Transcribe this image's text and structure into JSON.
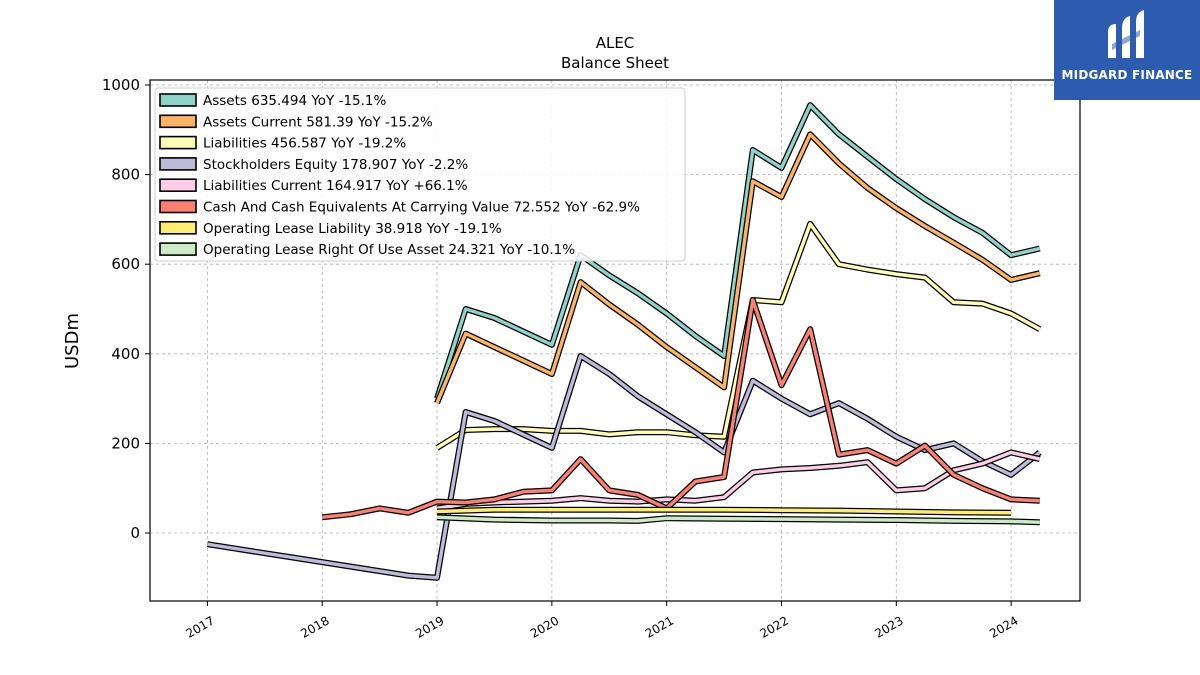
{
  "chart_data": {
    "type": "line",
    "title": "ALEC",
    "subtitle": "Balance  Sheet",
    "ylabel": "USDm",
    "xlabel": "",
    "ylim": [
      -150,
      1000
    ],
    "xlim": [
      2016.5,
      2024.6
    ],
    "grid": true,
    "legend_position": "top-left",
    "yticks": [
      0,
      200,
      400,
      600,
      800,
      1000
    ],
    "xticks": [
      "2017",
      "2018",
      "2019",
      "2020",
      "2021",
      "2022",
      "2023",
      "2024"
    ],
    "series": [
      {
        "name": "Assets",
        "legend": "Assets  635.494 YoY -15.1%",
        "color": "#8dd3c7",
        "x": [
          2019.0,
          2019.25,
          2019.5,
          2019.75,
          2020.0,
          2020.25,
          2020.5,
          2020.75,
          2021.0,
          2021.25,
          2021.5,
          2021.75,
          2022.0,
          2022.25,
          2022.5,
          2022.75,
          2023.0,
          2023.25,
          2023.5,
          2023.75,
          2024.0,
          2024.25
        ],
        "y": [
          300,
          500,
          480,
          450,
          420,
          620,
          575,
          535,
          490,
          440,
          395,
          855,
          815,
          955,
          890,
          840,
          790,
          745,
          705,
          670,
          620,
          635
        ]
      },
      {
        "name": "Assets Current",
        "legend": "Assets Current  581.39 YoY -15.2%",
        "color": "#fdb462",
        "x": [
          2019.0,
          2019.25,
          2019.5,
          2019.75,
          2020.0,
          2020.25,
          2020.5,
          2020.75,
          2021.0,
          2021.25,
          2021.5,
          2021.75,
          2022.0,
          2022.25,
          2022.5,
          2022.75,
          2023.0,
          2023.25,
          2023.5,
          2023.75,
          2024.0,
          2024.25
        ],
        "y": [
          290,
          445,
          415,
          385,
          355,
          560,
          510,
          465,
          415,
          370,
          325,
          785,
          750,
          890,
          825,
          770,
          725,
          685,
          648,
          610,
          565,
          580
        ]
      },
      {
        "name": "Liabilities",
        "legend": "Liabilities  456.587 YoY -19.2%",
        "color": "#ffffb3",
        "x": [
          2019.0,
          2019.25,
          2019.5,
          2019.75,
          2020.0,
          2020.25,
          2020.5,
          2020.75,
          2021.0,
          2021.25,
          2021.5,
          2021.75,
          2022.0,
          2022.25,
          2022.5,
          2022.75,
          2023.0,
          2023.25,
          2023.5,
          2023.75,
          2024.0,
          2024.25
        ],
        "y": [
          190,
          230,
          232,
          232,
          228,
          228,
          220,
          225,
          225,
          218,
          215,
          520,
          515,
          690,
          600,
          588,
          578,
          570,
          515,
          512,
          490,
          455
        ]
      },
      {
        "name": "Stockholders Equity",
        "legend": "Stockholders Equity  178.907 YoY -2.2%",
        "color": "#bebada",
        "x": [
          2017.0,
          2017.25,
          2017.5,
          2017.75,
          2018.0,
          2018.25,
          2018.5,
          2018.75,
          2019.0,
          2019.25,
          2019.5,
          2019.75,
          2020.0,
          2020.25,
          2020.5,
          2020.75,
          2021.0,
          2021.25,
          2021.5,
          2021.75,
          2022.0,
          2022.25,
          2022.5,
          2022.75,
          2023.0,
          2023.25,
          2023.5,
          2023.75,
          2024.0,
          2024.25
        ],
        "y": [
          -25,
          -35,
          -45,
          -55,
          -65,
          -75,
          -85,
          -95,
          -100,
          270,
          250,
          220,
          190,
          395,
          355,
          305,
          265,
          225,
          180,
          340,
          300,
          265,
          290,
          255,
          215,
          185,
          200,
          160,
          130,
          180
        ]
      },
      {
        "name": "Liabilities Current",
        "legend": "Liabilities Current  164.917 YoY +66.1%",
        "color": "#fccde5",
        "x": [
          2019.0,
          2019.25,
          2019.5,
          2019.75,
          2020.0,
          2020.25,
          2020.5,
          2020.75,
          2021.0,
          2021.25,
          2021.5,
          2021.75,
          2022.0,
          2022.25,
          2022.5,
          2022.75,
          2023.0,
          2023.25,
          2023.5,
          2023.75,
          2024.0,
          2024.25
        ],
        "y": [
          55,
          65,
          68,
          70,
          72,
          78,
          72,
          70,
          75,
          72,
          80,
          135,
          142,
          145,
          150,
          158,
          95,
          100,
          140,
          155,
          180,
          165
        ]
      },
      {
        "name": "Cash And Cash Equivalents At Carrying Value",
        "legend": "Cash And Cash Equivalents At Carrying Value  72.552 YoY -62.9%",
        "color": "#fb8072",
        "x": [
          2018.0,
          2018.25,
          2018.5,
          2018.75,
          2019.0,
          2019.25,
          2019.5,
          2019.75,
          2020.0,
          2020.25,
          2020.5,
          2020.75,
          2021.0,
          2021.25,
          2021.5,
          2021.75,
          2022.0,
          2022.25,
          2022.5,
          2022.75,
          2023.0,
          2023.25,
          2023.5,
          2023.75,
          2024.0,
          2024.25
        ],
        "y": [
          35,
          42,
          55,
          45,
          70,
          68,
          75,
          92,
          95,
          165,
          95,
          85,
          55,
          115,
          125,
          520,
          330,
          455,
          175,
          185,
          155,
          195,
          130,
          100,
          75,
          72
        ]
      },
      {
        "name": "Operating Lease Liability",
        "legend": "Operating Lease Liability  38.918 YoY -19.1%",
        "color": "#ffed6f",
        "x": [
          2019.0,
          2019.5,
          2020.0,
          2020.5,
          2021.0,
          2021.5,
          2022.0,
          2022.5,
          2023.0,
          2023.5,
          2024.0
        ],
        "y": [
          48,
          52,
          52,
          52,
          52,
          52,
          51,
          50,
          48,
          46,
          45
        ]
      },
      {
        "name": "Operating Lease Right Of Use Asset",
        "legend": "Operating Lease Right Of Use Asset  24.321 YoY -10.1%",
        "color": "#ccebc5",
        "x": [
          2019.0,
          2019.5,
          2020.0,
          2020.5,
          2020.75,
          2021.0,
          2021.5,
          2022.0,
          2022.5,
          2023.0,
          2023.5,
          2024.0,
          2024.25
        ],
        "y": [
          35,
          30,
          28,
          28,
          27,
          33,
          32,
          31,
          30,
          29,
          27,
          26,
          24
        ]
      }
    ]
  },
  "brand": {
    "name": "MIDGARD FINANCE",
    "background": "#2d5bb0"
  }
}
